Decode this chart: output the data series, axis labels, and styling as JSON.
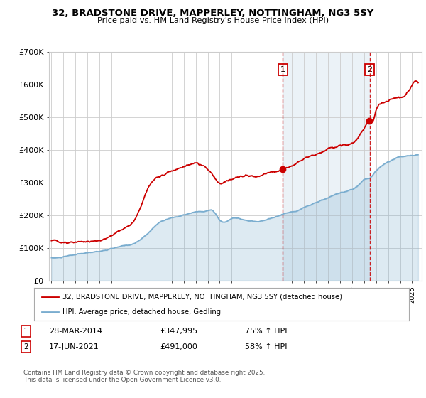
{
  "title_line1": "32, BRADSTONE DRIVE, MAPPERLEY, NOTTINGHAM, NG3 5SY",
  "title_line2": "Price paid vs. HM Land Registry's House Price Index (HPI)",
  "legend_label_red": "32, BRADSTONE DRIVE, MAPPERLEY, NOTTINGHAM, NG3 5SY (detached house)",
  "legend_label_blue": "HPI: Average price, detached house, Gedling",
  "annotation1_label": "1",
  "annotation1_date": "28-MAR-2014",
  "annotation1_price": "£347,995",
  "annotation1_hpi": "75% ↑ HPI",
  "annotation1_year": 2014.25,
  "annotation2_label": "2",
  "annotation2_date": "17-JUN-2021",
  "annotation2_price": "£491,000",
  "annotation2_hpi": "58% ↑ HPI",
  "annotation2_year": 2021.46,
  "footer": "Contains HM Land Registry data © Crown copyright and database right 2025.\nThis data is licensed under the Open Government Licence v3.0.",
  "red_color": "#cc0000",
  "blue_color": "#7aadcf",
  "blue_fill": "#ddeef7",
  "dashed_color": "#cc0000",
  "plot_bg_color": "#ffffff",
  "grid_color": "#cccccc",
  "ylim": [
    0,
    700000
  ],
  "yticks": [
    0,
    100000,
    200000,
    300000,
    400000,
    500000,
    600000,
    700000
  ],
  "xlim_start": 1994.8,
  "xlim_end": 2025.8
}
